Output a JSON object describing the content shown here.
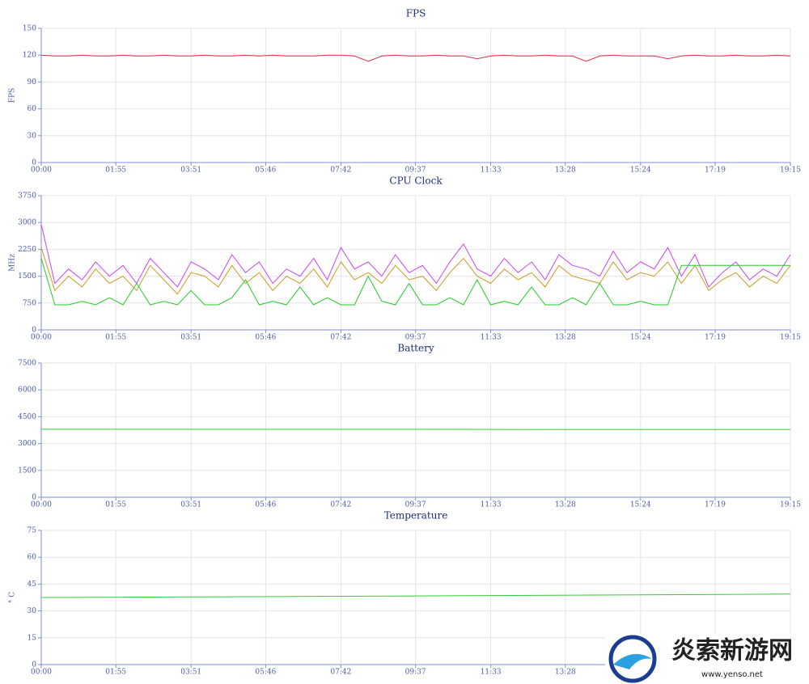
{
  "chart_data": [
    {
      "type": "line",
      "title": "FPS",
      "y_label": "FPS",
      "x": [
        0,
        21,
        42,
        63,
        84,
        105,
        126,
        147,
        168,
        189,
        210,
        231,
        252,
        273,
        294,
        315,
        336,
        357,
        378,
        399,
        420,
        441,
        462,
        483,
        504,
        525,
        546,
        567,
        588,
        609,
        630,
        651,
        672,
        693,
        714,
        735,
        756,
        777,
        798,
        819,
        840,
        861,
        882,
        903,
        924,
        945,
        966,
        987,
        1008,
        1029,
        1050,
        1071,
        1092,
        1113,
        1134,
        1155
      ],
      "series": [
        {
          "name": "FPS",
          "color": "#e0304a",
          "values": [
            120,
            119,
            119,
            120,
            119,
            119,
            120,
            119,
            119,
            120,
            119,
            119,
            120,
            119,
            119,
            120,
            119,
            120,
            119,
            119,
            119,
            120,
            120,
            119,
            113,
            119,
            120,
            119,
            119,
            120,
            119,
            119,
            116,
            119,
            120,
            119,
            119,
            120,
            119,
            119,
            113,
            119,
            120,
            119,
            119,
            119,
            116,
            119,
            120,
            119,
            119,
            120,
            119,
            119,
            120,
            119
          ]
        }
      ],
      "xlim": [
        0,
        1155
      ],
      "xticks": [
        {
          "value": 0,
          "label": "00:00"
        },
        {
          "value": 115,
          "label": "01:55"
        },
        {
          "value": 231,
          "label": "03:51"
        },
        {
          "value": 346,
          "label": "05:46"
        },
        {
          "value": 462,
          "label": "07:42"
        },
        {
          "value": 577,
          "label": "09:37"
        },
        {
          "value": 693,
          "label": "11:33"
        },
        {
          "value": 808,
          "label": "13:28"
        },
        {
          "value": 924,
          "label": "15:24"
        },
        {
          "value": 1039,
          "label": "17:19"
        },
        {
          "value": 1155,
          "label": "19:15"
        }
      ],
      "ylim": [
        0,
        150
      ],
      "yticks": [
        0,
        30,
        60,
        90,
        120,
        150
      ],
      "grid": true
    },
    {
      "type": "line",
      "title": "CPU Clock",
      "y_label": "MHz",
      "x": [
        0,
        21,
        42,
        63,
        84,
        105,
        126,
        147,
        168,
        189,
        210,
        231,
        252,
        273,
        294,
        315,
        336,
        357,
        378,
        399,
        420,
        441,
        462,
        483,
        504,
        525,
        546,
        567,
        588,
        609,
        630,
        651,
        672,
        693,
        714,
        735,
        756,
        777,
        798,
        819,
        840,
        861,
        882,
        903,
        924,
        945,
        966,
        987,
        1008,
        1029,
        1050,
        1071,
        1092,
        1113,
        1134,
        1155
      ],
      "series": [
        {
          "name": "CPU 0",
          "color": "#cc44ee",
          "values": [
            2950,
            1300,
            1700,
            1400,
            1900,
            1500,
            1800,
            1300,
            2000,
            1600,
            1200,
            1900,
            1700,
            1400,
            2100,
            1600,
            1900,
            1300,
            1700,
            1500,
            2000,
            1400,
            2300,
            1700,
            1900,
            1500,
            2100,
            1600,
            1800,
            1300,
            1900,
            2400,
            1700,
            1500,
            2000,
            1600,
            1900,
            1400,
            2100,
            1800,
            1700,
            1500,
            2200,
            1600,
            1900,
            1700,
            2300,
            1500,
            2100,
            1200,
            1600,
            1900,
            1400,
            1700,
            1500,
            2100
          ]
        },
        {
          "name": "CPU 1",
          "color": "#cc9a22",
          "values": [
            2300,
            1100,
            1500,
            1200,
            1700,
            1300,
            1500,
            1100,
            1800,
            1400,
            1000,
            1600,
            1500,
            1200,
            1800,
            1300,
            1600,
            1100,
            1500,
            1300,
            1700,
            1200,
            1900,
            1400,
            1600,
            1300,
            1800,
            1400,
            1500,
            1100,
            1600,
            2000,
            1500,
            1300,
            1700,
            1400,
            1600,
            1200,
            1800,
            1500,
            1400,
            1300,
            1900,
            1400,
            1600,
            1500,
            1900,
            1300,
            1800,
            1100,
            1400,
            1600,
            1200,
            1500,
            1300,
            1800
          ]
        },
        {
          "name": "CPU 2",
          "color": "#22cc22",
          "values": [
            2000,
            700,
            700,
            800,
            700,
            900,
            700,
            1300,
            700,
            800,
            700,
            1100,
            700,
            700,
            900,
            1400,
            700,
            800,
            700,
            1200,
            700,
            900,
            700,
            700,
            1500,
            800,
            700,
            1300,
            700,
            700,
            900,
            700,
            1400,
            700,
            800,
            700,
            1200,
            700,
            700,
            900,
            700,
            1300,
            700,
            700,
            800,
            700,
            700,
            1800,
            1800,
            1800,
            1800,
            1800,
            1800,
            1800,
            1800,
            1800
          ]
        }
      ],
      "xlim": [
        0,
        1155
      ],
      "xticks": [
        {
          "value": 0,
          "label": "00:00"
        },
        {
          "value": 115,
          "label": "01:55"
        },
        {
          "value": 231,
          "label": "03:51"
        },
        {
          "value": 346,
          "label": "05:46"
        },
        {
          "value": 462,
          "label": "07:42"
        },
        {
          "value": 577,
          "label": "09:37"
        },
        {
          "value": 693,
          "label": "11:33"
        },
        {
          "value": 808,
          "label": "13:28"
        },
        {
          "value": 924,
          "label": "15:24"
        },
        {
          "value": 1039,
          "label": "17:19"
        },
        {
          "value": 1155,
          "label": "19:15"
        }
      ],
      "ylim": [
        0,
        3750
      ],
      "yticks": [
        0,
        750,
        1500,
        2250,
        3000,
        3750
      ],
      "grid": true
    },
    {
      "type": "line",
      "title": "Battery",
      "x": [
        0,
        577,
        808,
        1155
      ],
      "series": [
        {
          "name": "Battery",
          "color": "#33cc33",
          "values": [
            3800,
            3795,
            3785,
            3780
          ]
        }
      ],
      "xlim": [
        0,
        1155
      ],
      "xticks": [
        {
          "value": 0,
          "label": "00:00"
        },
        {
          "value": 115,
          "label": "01:55"
        },
        {
          "value": 231,
          "label": "03:51"
        },
        {
          "value": 346,
          "label": "05:46"
        },
        {
          "value": 462,
          "label": "07:42"
        },
        {
          "value": 577,
          "label": "09:37"
        },
        {
          "value": 693,
          "label": "11:33"
        },
        {
          "value": 808,
          "label": "13:28"
        },
        {
          "value": 924,
          "label": "15:24"
        },
        {
          "value": 1039,
          "label": "17:19"
        },
        {
          "value": 1155,
          "label": "19:15"
        }
      ],
      "ylim": [
        0,
        7500
      ],
      "yticks": [
        0,
        1500,
        3000,
        4500,
        6000,
        7500
      ],
      "grid": true
    },
    {
      "type": "line",
      "title": "Temperature",
      "y_label": "° C",
      "x": [
        0,
        231,
        462,
        693,
        924,
        1155
      ],
      "series": [
        {
          "name": "Temperature",
          "color": "#33cc33",
          "values": [
            37.5,
            37.8,
            38.2,
            38.6,
            39.0,
            39.4
          ]
        }
      ],
      "xlim": [
        0,
        1155
      ],
      "xticks": [
        {
          "value": 0,
          "label": "00:00"
        },
        {
          "value": 115,
          "label": "01:55"
        },
        {
          "value": 231,
          "label": "03:51"
        },
        {
          "value": 346,
          "label": "05:46"
        },
        {
          "value": 462,
          "label": "07:42"
        },
        {
          "value": 577,
          "label": "09:37"
        },
        {
          "value": 693,
          "label": "11:33"
        },
        {
          "value": 808,
          "label": "13:28"
        },
        {
          "value": 924,
          "label": "15:24"
        },
        {
          "value": 1039,
          "label": "17:19"
        },
        {
          "value": 1155,
          "label": "19:15"
        }
      ],
      "ylim": [
        0,
        75
      ],
      "yticks": [
        0,
        15,
        30,
        45,
        60,
        75
      ],
      "grid": true
    }
  ],
  "watermark": {
    "title": "炎索新游网",
    "url": "www.yenso.net"
  }
}
